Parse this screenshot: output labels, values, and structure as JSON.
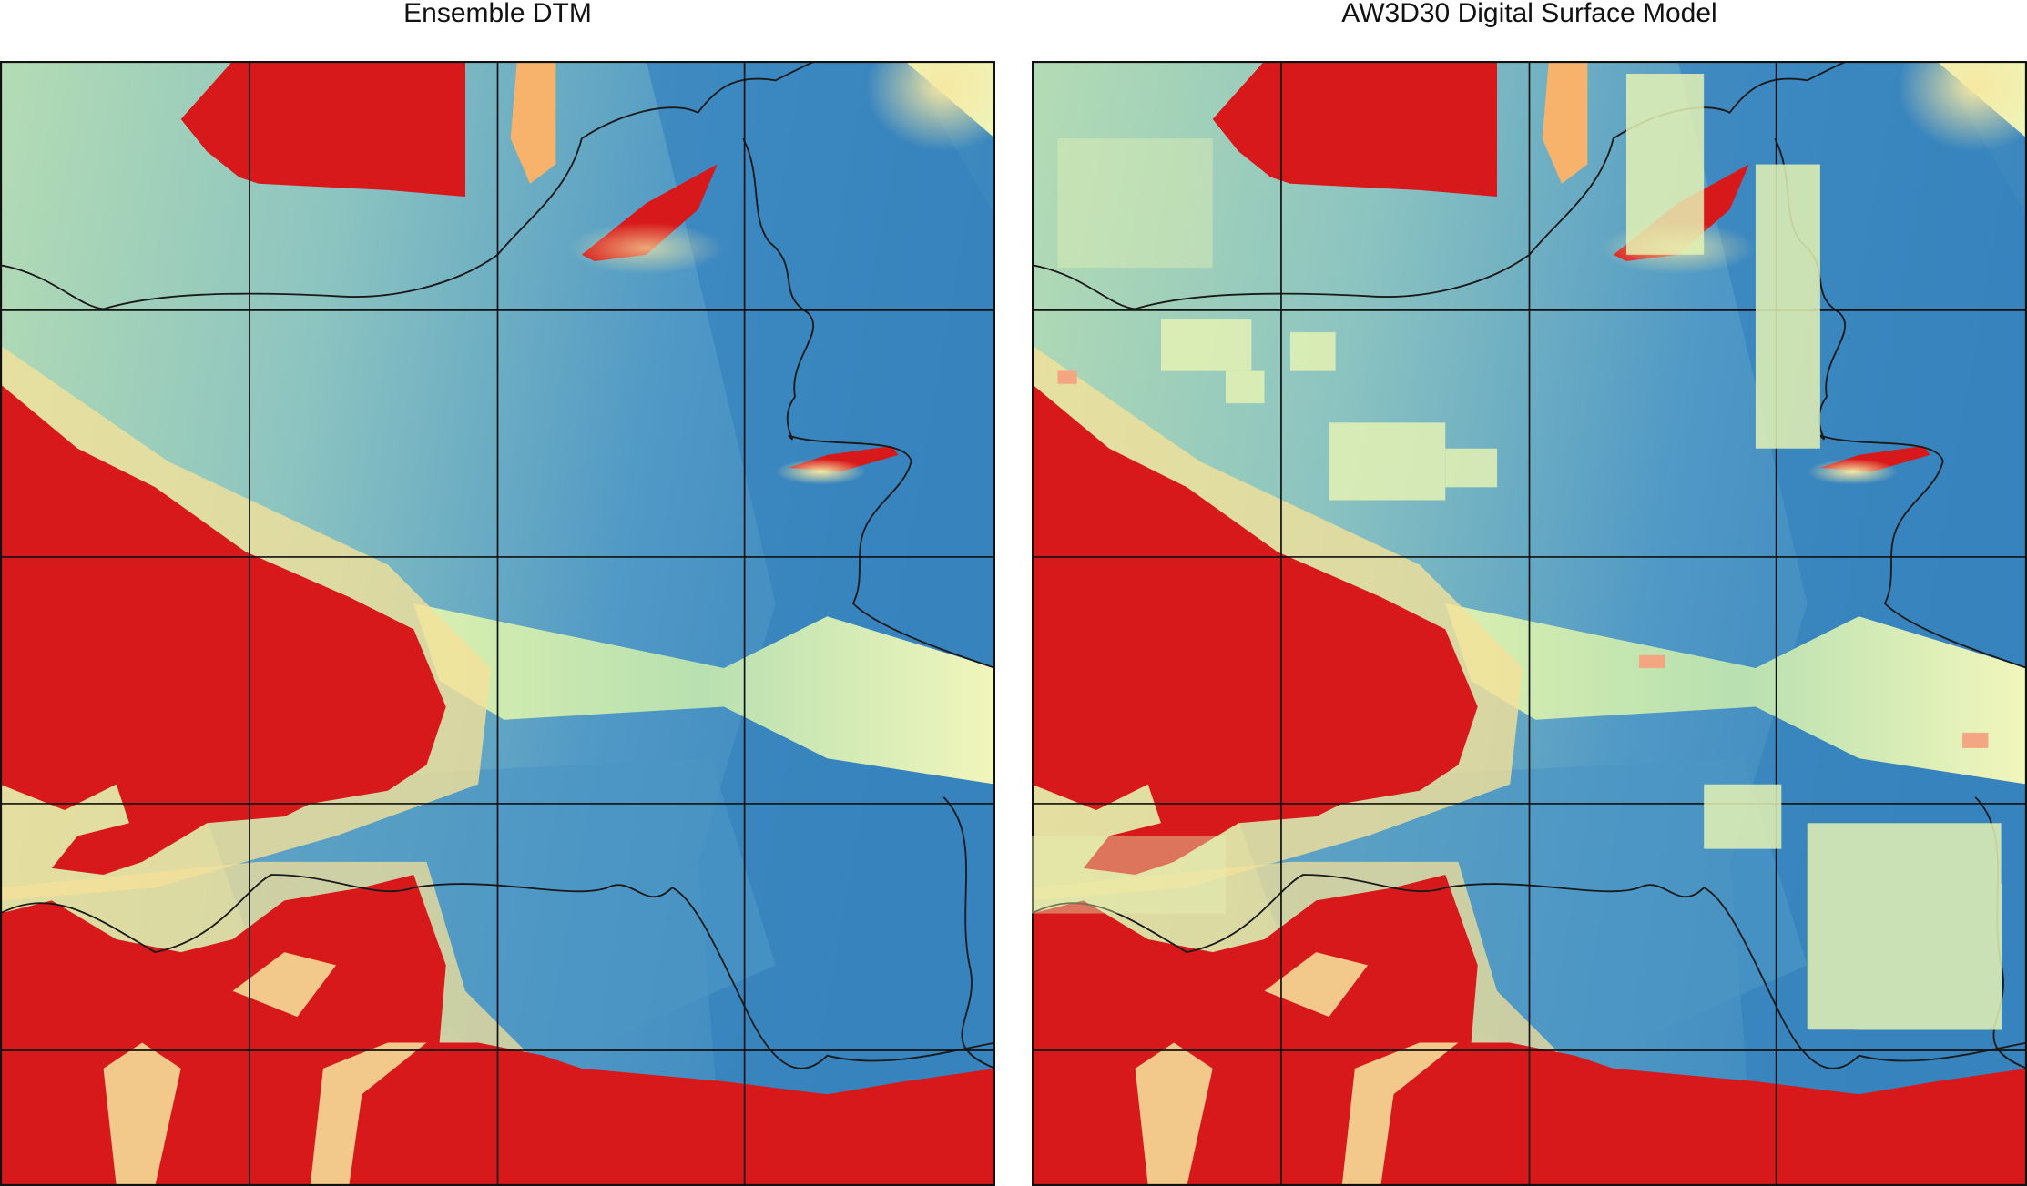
{
  "panels": [
    {
      "title": "Ensemble DTM"
    },
    {
      "title": "AW3D30 Digital Surface Model"
    }
  ]
}
